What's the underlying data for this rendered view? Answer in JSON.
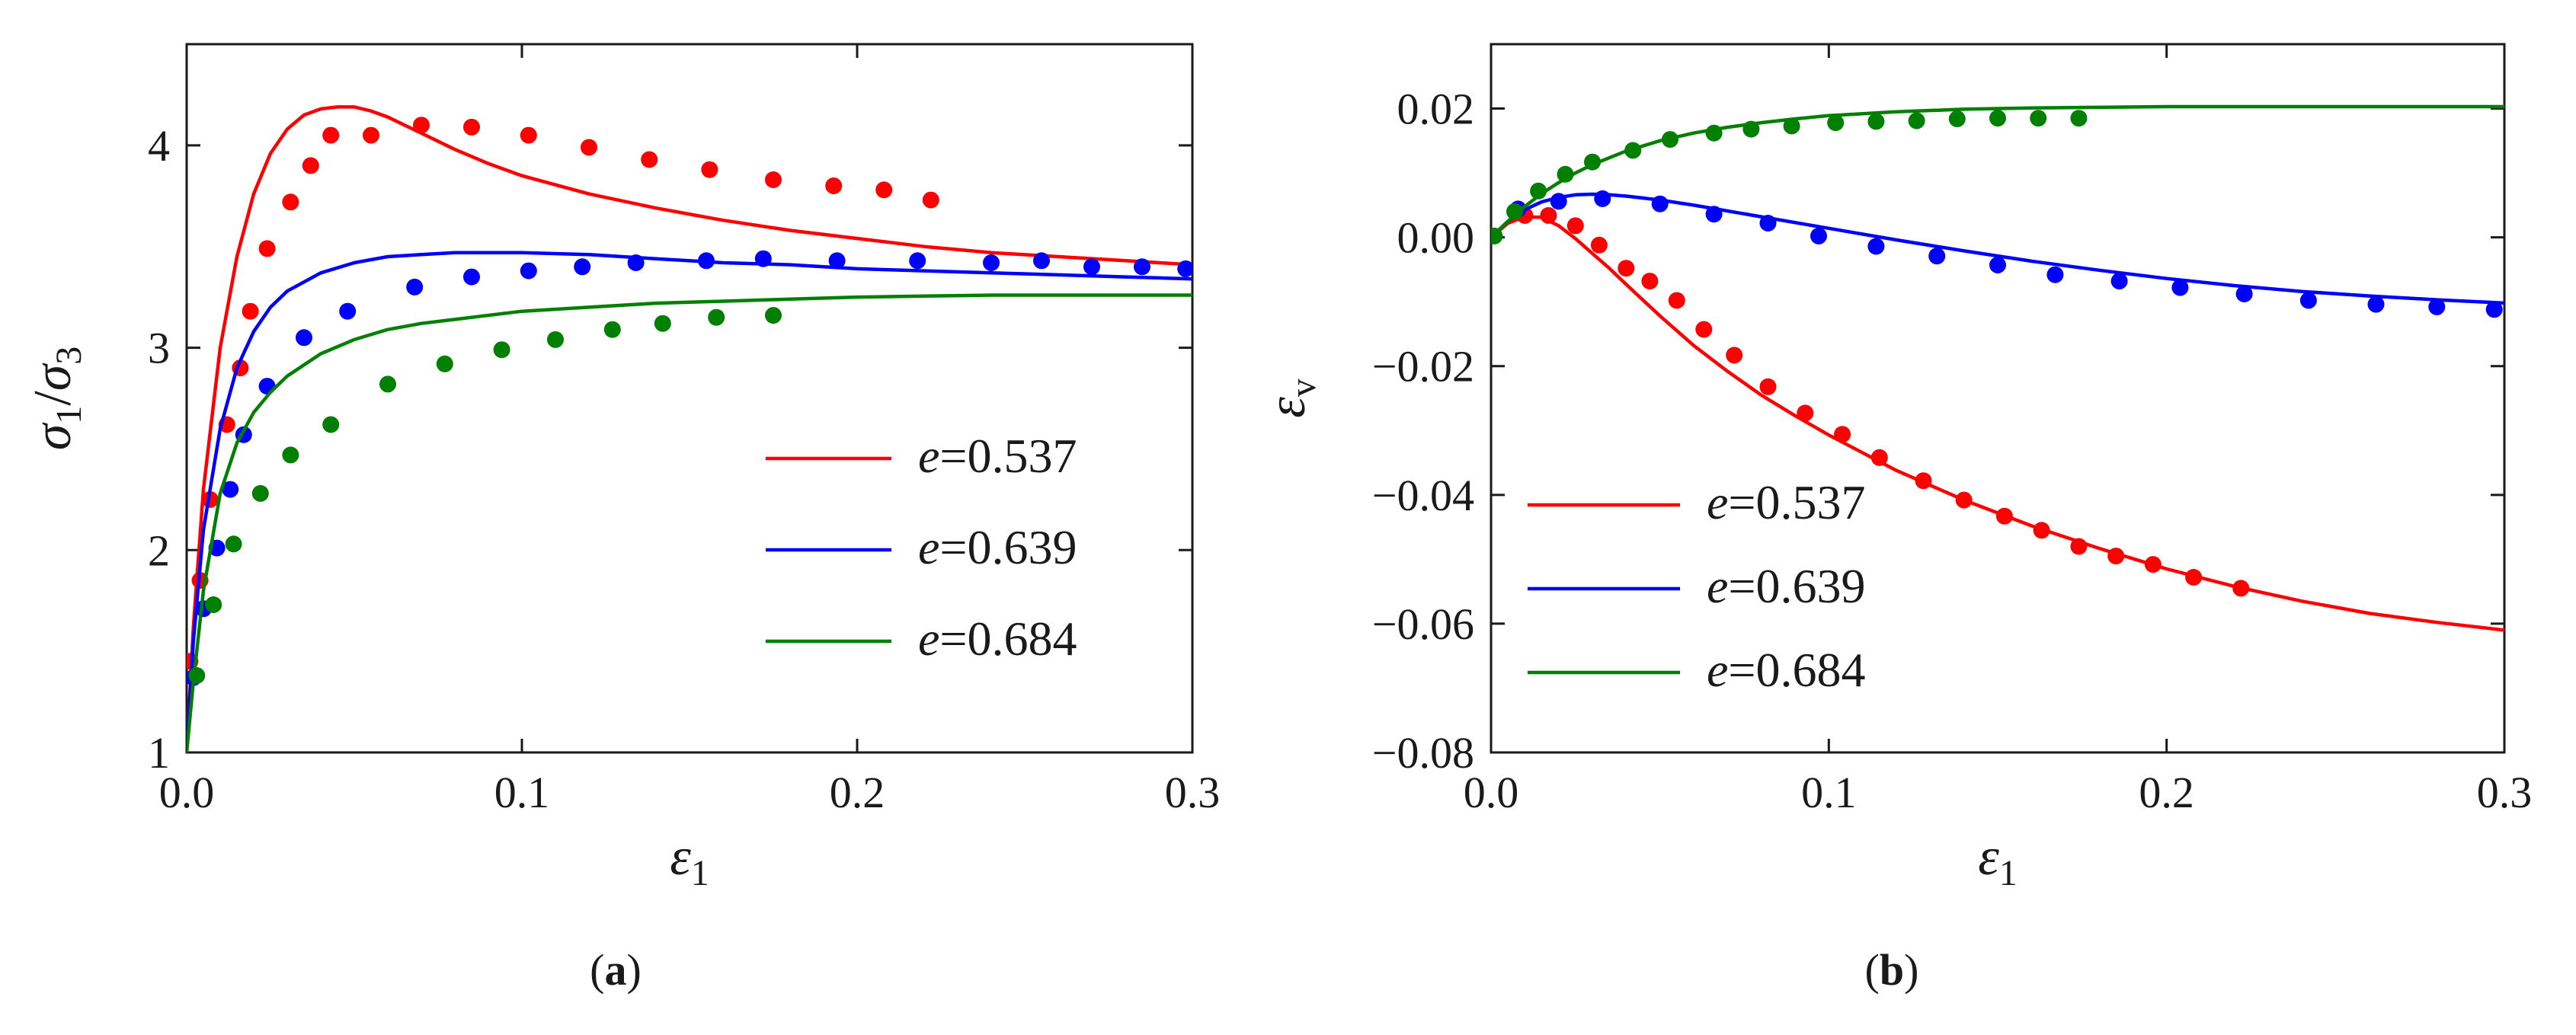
{
  "chart_data": [
    {
      "type": "scatter",
      "panel": "a",
      "caption_letter": "a",
      "caption_open": "(",
      "caption_close": ")",
      "ylabel_symbol_1": "σ",
      "ylabel_sub_1": "1",
      "ylabel_slash": "/",
      "ylabel_symbol_2": "σ",
      "ylabel_sub_2": "3",
      "xlabel_symbol": "ε",
      "xlabel_sub": "1",
      "xlim": [
        0,
        0.3
      ],
      "ylim": [
        1,
        4.5
      ],
      "xticks": [
        0,
        0.1,
        0.2,
        0.3
      ],
      "xtick_labels": [
        "0.0",
        "0.1",
        "0.2",
        "0.3"
      ],
      "yticks": [
        1,
        2,
        3,
        4
      ],
      "ytick_labels": [
        "1",
        "2",
        "3",
        "4"
      ],
      "legend": [
        {
          "prefix": "e",
          "rest": "=0.537",
          "color": "#ff0000"
        },
        {
          "prefix": "e",
          "rest": "=0.639",
          "color": "#0000ff"
        },
        {
          "prefix": "e",
          "rest": "=0.684",
          "color": "#008000"
        }
      ],
      "series": [
        {
          "name": "e=0.537",
          "color": "#ff0000",
          "line": {
            "x": [
              0,
              0.002,
              0.005,
              0.01,
              0.015,
              0.02,
              0.025,
              0.03,
              0.035,
              0.04,
              0.045,
              0.05,
              0.055,
              0.06,
              0.07,
              0.08,
              0.09,
              0.1,
              0.12,
              0.14,
              0.16,
              0.18,
              0.2,
              0.22,
              0.24,
              0.26,
              0.28,
              0.3
            ],
            "y": [
              1,
              1.62,
              2.3,
              3.0,
              3.45,
              3.76,
              3.96,
              4.08,
              4.15,
              4.18,
              4.19,
              4.19,
              4.17,
              4.14,
              4.06,
              3.98,
              3.91,
              3.85,
              3.76,
              3.69,
              3.63,
              3.58,
              3.54,
              3.5,
              3.47,
              3.45,
              3.43,
              3.41
            ]
          },
          "points": {
            "x": [
              0.001,
              0.004,
              0.007,
              0.012,
              0.016,
              0.019,
              0.024,
              0.031,
              0.037,
              0.043,
              0.055,
              0.07,
              0.085,
              0.102,
              0.12,
              0.138,
              0.156,
              0.175,
              0.193,
              0.208,
              0.222
            ],
            "y": [
              1.45,
              1.85,
              2.25,
              2.62,
              2.9,
              3.18,
              3.49,
              3.72,
              3.9,
              4.05,
              4.05,
              4.1,
              4.09,
              4.05,
              3.99,
              3.93,
              3.88,
              3.83,
              3.8,
              3.78,
              3.73
            ]
          }
        },
        {
          "name": "e=0.639",
          "color": "#0000ff",
          "line": {
            "x": [
              0,
              0.002,
              0.005,
              0.01,
              0.015,
              0.02,
              0.025,
              0.03,
              0.04,
              0.05,
              0.06,
              0.07,
              0.08,
              0.1,
              0.12,
              0.14,
              0.16,
              0.18,
              0.2,
              0.22,
              0.24,
              0.26,
              0.28,
              0.3
            ],
            "y": [
              1,
              1.55,
              2.1,
              2.6,
              2.9,
              3.08,
              3.2,
              3.28,
              3.37,
              3.42,
              3.45,
              3.46,
              3.47,
              3.47,
              3.46,
              3.44,
              3.42,
              3.41,
              3.39,
              3.38,
              3.37,
              3.36,
              3.35,
              3.34
            ]
          },
          "points": {
            "x": [
              0.002,
              0.005,
              0.009,
              0.013,
              0.017,
              0.024,
              0.035,
              0.048,
              0.068,
              0.085,
              0.102,
              0.118,
              0.134,
              0.155,
              0.172,
              0.194,
              0.218,
              0.24,
              0.255,
              0.27,
              0.285,
              0.298
            ],
            "y": [
              1.37,
              1.71,
              2.01,
              2.3,
              2.57,
              2.81,
              3.05,
              3.18,
              3.3,
              3.35,
              3.38,
              3.4,
              3.42,
              3.43,
              3.44,
              3.43,
              3.43,
              3.42,
              3.43,
              3.4,
              3.4,
              3.39
            ]
          }
        },
        {
          "name": "e=0.684",
          "color": "#008000",
          "line": {
            "x": [
              0,
              0.002,
              0.005,
              0.01,
              0.015,
              0.02,
              0.025,
              0.03,
              0.04,
              0.05,
              0.06,
              0.07,
              0.08,
              0.1,
              0.12,
              0.14,
              0.16,
              0.18,
              0.2,
              0.22,
              0.24,
              0.26,
              0.28,
              0.3
            ],
            "y": [
              1,
              1.35,
              1.8,
              2.28,
              2.53,
              2.68,
              2.78,
              2.86,
              2.97,
              3.04,
              3.09,
              3.12,
              3.14,
              3.18,
              3.2,
              3.22,
              3.23,
              3.24,
              3.25,
              3.255,
              3.26,
              3.26,
              3.26,
              3.26
            ]
          },
          "points": {
            "x": [
              0.003,
              0.008,
              0.014,
              0.022,
              0.031,
              0.043,
              0.06,
              0.077,
              0.094,
              0.11,
              0.127,
              0.142,
              0.158,
              0.175
            ],
            "y": [
              1.38,
              1.73,
              2.03,
              2.28,
              2.47,
              2.62,
              2.82,
              2.92,
              2.99,
              3.04,
              3.09,
              3.12,
              3.15,
              3.16
            ]
          }
        }
      ]
    },
    {
      "type": "scatter",
      "panel": "b",
      "caption_letter": "b",
      "caption_open": "(",
      "caption_close": ")",
      "ylabel_symbol": "ε",
      "ylabel_sub": "v",
      "xlabel_symbol": "ε",
      "xlabel_sub": "1",
      "xlim": [
        0,
        0.3
      ],
      "ylim": [
        -0.08,
        0.03
      ],
      "xticks": [
        0,
        0.1,
        0.2,
        0.3
      ],
      "xtick_labels": [
        "0.0",
        "0.1",
        "0.2",
        "0.3"
      ],
      "yticks": [
        -0.08,
        -0.06,
        -0.04,
        -0.02,
        0,
        0.02
      ],
      "ytick_labels": [
        "−0.08",
        "−0.06",
        "−0.04",
        "−0.02",
        "0.00",
        "0.02"
      ],
      "legend": [
        {
          "prefix": "e",
          "rest": "=0.537",
          "color": "#ff0000"
        },
        {
          "prefix": "e",
          "rest": "=0.639",
          "color": "#0000ff"
        },
        {
          "prefix": "e",
          "rest": "=0.684",
          "color": "#008000"
        }
      ],
      "series": [
        {
          "name": "e=0.537",
          "color": "#ff0000",
          "line": {
            "x": [
              0,
              0.005,
              0.01,
              0.015,
              0.02,
              0.025,
              0.03,
              0.035,
              0.04,
              0.05,
              0.06,
              0.07,
              0.08,
              0.09,
              0.1,
              0.12,
              0.14,
              0.16,
              0.18,
              0.2,
              0.22,
              0.24,
              0.26,
              0.28,
              0.3
            ],
            "y": [
              0,
              0.0022,
              0.0032,
              0.0031,
              0.0018,
              -0.0002,
              -0.0025,
              -0.0048,
              -0.0073,
              -0.0122,
              -0.0168,
              -0.0208,
              -0.0245,
              -0.0277,
              -0.0307,
              -0.0362,
              -0.0408,
              -0.0448,
              -0.0483,
              -0.0515,
              -0.0542,
              -0.0565,
              -0.0584,
              -0.0598,
              -0.061
            ]
          },
          "points": {
            "x": [
              0.01,
              0.017,
              0.025,
              0.032,
              0.04,
              0.047,
              0.055,
              0.063,
              0.072,
              0.082,
              0.093,
              0.104,
              0.115,
              0.128,
              0.14,
              0.152,
              0.163,
              0.174,
              0.185,
              0.196,
              0.208,
              0.222
            ],
            "y": [
              0.0034,
              0.0034,
              0.0018,
              -0.0012,
              -0.0048,
              -0.0068,
              -0.0098,
              -0.0143,
              -0.0183,
              -0.0232,
              -0.0273,
              -0.0306,
              -0.0342,
              -0.0378,
              -0.0408,
              -0.0433,
              -0.0455,
              -0.048,
              -0.0495,
              -0.0508,
              -0.0528,
              -0.0545
            ]
          }
        },
        {
          "name": "e=0.639",
          "color": "#0000ff",
          "line": {
            "x": [
              0,
              0.005,
              0.01,
              0.015,
              0.02,
              0.025,
              0.03,
              0.035,
              0.04,
              0.05,
              0.06,
              0.07,
              0.08,
              0.1,
              0.12,
              0.14,
              0.16,
              0.18,
              0.2,
              0.22,
              0.24,
              0.26,
              0.28,
              0.3
            ],
            "y": [
              0,
              0.0025,
              0.0043,
              0.0055,
              0.0062,
              0.0066,
              0.0067,
              0.0066,
              0.0064,
              0.0058,
              0.005,
              0.0041,
              0.0032,
              0.0014,
              -0.0004,
              -0.0021,
              -0.0037,
              -0.0051,
              -0.0064,
              -0.0075,
              -0.0084,
              -0.0091,
              -0.0097,
              -0.0102
            ]
          },
          "points": {
            "x": [
              0.008,
              0.02,
              0.033,
              0.05,
              0.066,
              0.082,
              0.097,
              0.114,
              0.132,
              0.15,
              0.167,
              0.186,
              0.204,
              0.223,
              0.242,
              0.262,
              0.28,
              0.297
            ],
            "y": [
              0.0044,
              0.0056,
              0.006,
              0.0052,
              0.0036,
              0.0022,
              0.0002,
              -0.0014,
              -0.0029,
              -0.0043,
              -0.0058,
              -0.0068,
              -0.0078,
              -0.0088,
              -0.0098,
              -0.0104,
              -0.0108,
              -0.0112
            ]
          }
        },
        {
          "name": "e=0.684",
          "color": "#008000",
          "line": {
            "x": [
              0,
              0.005,
              0.01,
              0.015,
              0.02,
              0.025,
              0.03,
              0.04,
              0.05,
              0.06,
              0.07,
              0.08,
              0.09,
              0.1,
              0.12,
              0.14,
              0.16,
              0.18,
              0.2,
              0.22,
              0.24,
              0.26,
              0.28,
              0.3
            ],
            "y": [
              0,
              0.0025,
              0.0048,
              0.0068,
              0.0085,
              0.01,
              0.0113,
              0.0134,
              0.015,
              0.0162,
              0.0171,
              0.0178,
              0.0184,
              0.0189,
              0.0195,
              0.0199,
              0.0201,
              0.0202,
              0.0203,
              0.0203,
              0.0203,
              0.0203,
              0.0203,
              0.0203
            ]
          },
          "points": {
            "x": [
              0.001,
              0.007,
              0.014,
              0.022,
              0.03,
              0.042,
              0.053,
              0.066,
              0.077,
              0.089,
              0.102,
              0.114,
              0.126,
              0.138,
              0.15,
              0.162,
              0.174
            ],
            "y": [
              0.0002,
              0.004,
              0.0072,
              0.0098,
              0.0117,
              0.0135,
              0.0152,
              0.0162,
              0.0168,
              0.0173,
              0.0178,
              0.018,
              0.0181,
              0.0184,
              0.0185,
              0.0185,
              0.0185
            ]
          }
        }
      ]
    }
  ]
}
